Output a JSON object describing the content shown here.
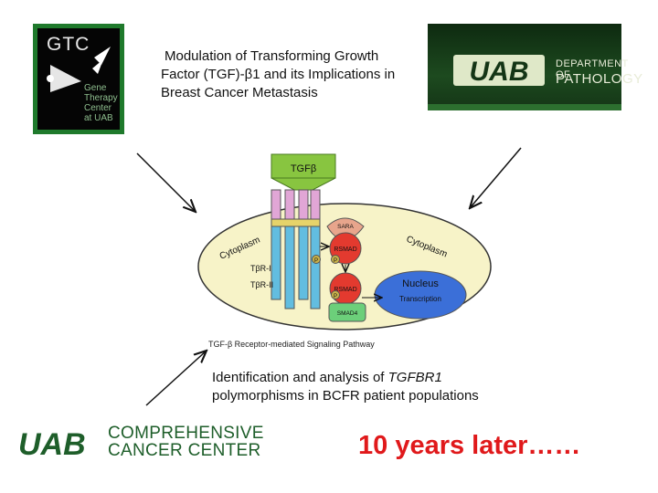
{
  "gtc_logo": {
    "title": "GTC",
    "subtitle_lines": [
      "Gene",
      "Therapy",
      "Center",
      "at UAB"
    ]
  },
  "title_lines": [
    "Modulation of Transforming Growth",
    "Factor (TGF)-β1 and its Implications in",
    "Breast Cancer Metastasis"
  ],
  "pathology_logo": {
    "mark": "UAB",
    "line1": "DEPARTMENT OF",
    "line2": "PATHOLOGY"
  },
  "diagram": {
    "ligand": "TGFβ",
    "cytoplasm_left": "Cytoplasm",
    "cytoplasm_right": "Cytoplasm",
    "receptor_1": "TβR-I",
    "receptor_2": "TβR-II",
    "sara": "SARA",
    "rsmad_1": "RSMAD",
    "rsmad_2": "RSMAD",
    "smad4": "SMAD4",
    "phospho": "P",
    "nucleus": "Nucleus",
    "transcription": "Transcription",
    "caption": "TGF-β Receptor-mediated Signaling Pathway"
  },
  "description": {
    "before": "Identification and analysis of ",
    "gene": "TGFBR1",
    "after": "polymorphisms in BCFR patient populations"
  },
  "ccc_logo": {
    "mark": "UAB",
    "line1": "COMPREHENSIVE",
    "line2": "CANCER CENTER"
  },
  "later_text": "10 years later……",
  "colors": {
    "accent_red": "#e0191b",
    "uab_green": "#1e5e2a",
    "cell_fill": "#f7f3c8",
    "nucleus_fill": "#3b6fd8"
  }
}
